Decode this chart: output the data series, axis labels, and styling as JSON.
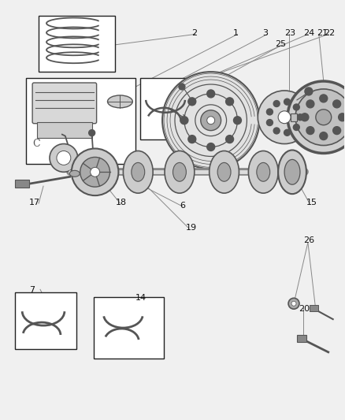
{
  "bg_color": "#f0f0f0",
  "lc": "#555555",
  "bc": "#222222",
  "figsize": [
    4.38,
    5.33
  ],
  "dpi": 100
}
